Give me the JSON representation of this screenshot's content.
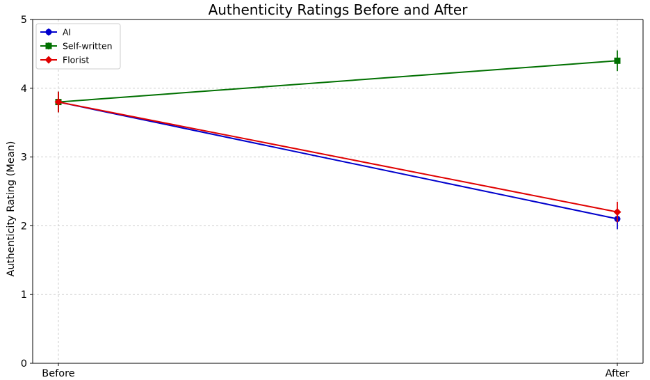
{
  "chart_data": {
    "type": "line",
    "title": "Authenticity Ratings Before and After",
    "xlabel": "",
    "ylabel": "Authenticity Rating (Mean)",
    "categories": [
      "Before",
      "After"
    ],
    "ylim": [
      0,
      5
    ],
    "yticks": [
      "0",
      "1",
      "2",
      "3",
      "4",
      "5"
    ],
    "grid": true,
    "legend_position": "top-left",
    "series": [
      {
        "name": "AI",
        "values": [
          3.8,
          2.1
        ],
        "errors": [
          0.15,
          0.15
        ],
        "color": "#0000cc",
        "marker": "circle"
      },
      {
        "name": "Self-written",
        "values": [
          3.8,
          4.4
        ],
        "errors": [
          0.15,
          0.15
        ],
        "color": "#007000",
        "marker": "square"
      },
      {
        "name": "Florist",
        "values": [
          3.8,
          2.2
        ],
        "errors": [
          0.15,
          0.15
        ],
        "color": "#e00000",
        "marker": "diamond"
      }
    ]
  }
}
